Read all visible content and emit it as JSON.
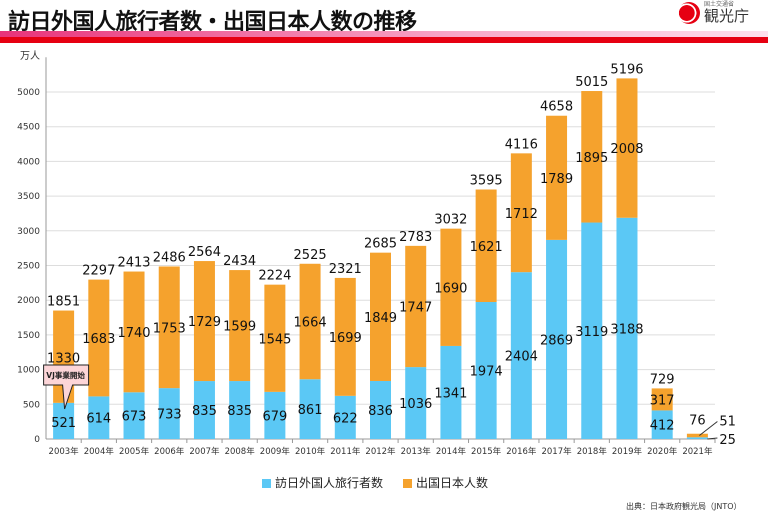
{
  "header": {
    "title": "訪日外国人旅行者数・出国日本人数の推移",
    "logo_text": "観光庁",
    "logo_sub": "国土交通省"
  },
  "source": "出典：日本政府観光局（JNTO）",
  "colors": {
    "visitors": "#5bc8f5",
    "outbound": "#f5a22d",
    "header_red": "#e60012"
  },
  "chart_data": {
    "type": "bar",
    "stacked": true,
    "ylabel": "万人",
    "ylim": [
      0,
      5500
    ],
    "yticks": [
      0,
      500,
      1000,
      1500,
      2000,
      2500,
      3000,
      3500,
      4000,
      4500,
      5000
    ],
    "grid": true,
    "legend": "bottom",
    "categories": [
      "2003年",
      "2004年",
      "2005年",
      "2006年",
      "2007年",
      "2008年",
      "2009年",
      "2010年",
      "2011年",
      "2012年",
      "2013年",
      "2014年",
      "2015年",
      "2016年",
      "2017年",
      "2018年",
      "2019年",
      "2020年",
      "2021年"
    ],
    "series": [
      {
        "name": "訪日外国人旅行者数",
        "values": [
          521,
          614,
          673,
          733,
          835,
          835,
          679,
          861,
          622,
          836,
          1036,
          1341,
          1974,
          2404,
          2869,
          3119,
          3188,
          412,
          25
        ]
      },
      {
        "name": "出国日本人数",
        "values": [
          1330,
          1683,
          1740,
          1753,
          1729,
          1599,
          1545,
          1664,
          1699,
          1849,
          1747,
          1690,
          1621,
          1712,
          1789,
          1895,
          2008,
          317,
          51
        ]
      }
    ],
    "totals": [
      1851,
      2297,
      2413,
      2486,
      2564,
      2434,
      2224,
      2525,
      2321,
      2685,
      2783,
      3032,
      3595,
      4116,
      4658,
      5015,
      5196,
      729,
      76
    ],
    "annotation": {
      "text": "VJ事業開始",
      "category": "2003年"
    }
  }
}
